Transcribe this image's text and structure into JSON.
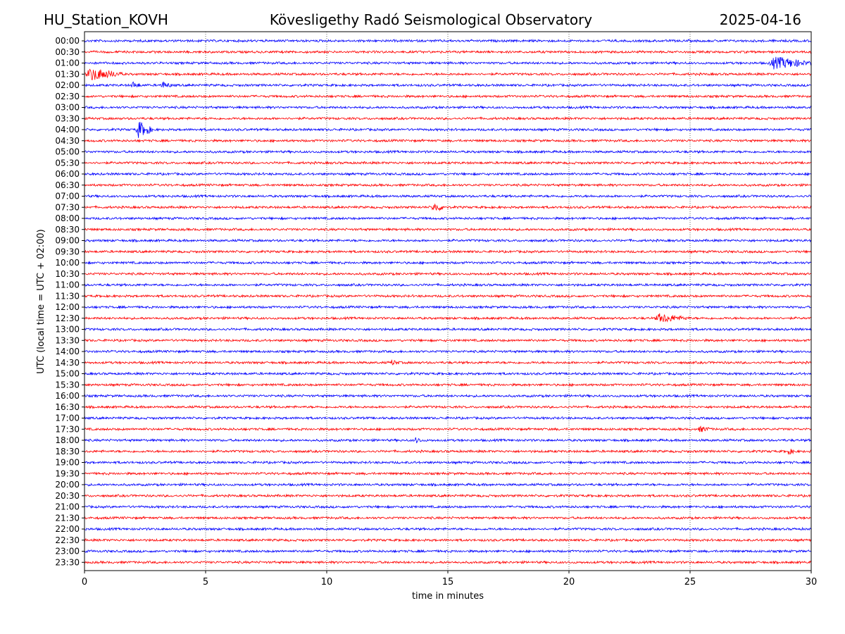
{
  "header": {
    "station": "HU_Station_KOVH",
    "observatory": "Kövesligethy Radó Seismological Observatory",
    "date": "2025-04-16"
  },
  "colors": {
    "even_rows": "#0000ff",
    "odd_rows": "#ff0000",
    "grid": "#000000"
  },
  "chart_data": {
    "type": "line",
    "title": "Kövesligethy Radó Seismological Observatory",
    "xlabel": "time in minutes",
    "ylabel": "UTC (local time = UTC + 02:00)",
    "xlim": [
      0,
      30
    ],
    "xticks": [
      0,
      5,
      10,
      15,
      20,
      25,
      30
    ],
    "grid": "vertical dotted at x ticks",
    "rows": [
      "00:00",
      "00:30",
      "01:00",
      "01:30",
      "02:00",
      "02:30",
      "03:00",
      "03:30",
      "04:00",
      "04:30",
      "05:00",
      "05:30",
      "06:00",
      "06:30",
      "07:00",
      "07:30",
      "08:00",
      "08:30",
      "09:00",
      "09:30",
      "10:00",
      "10:30",
      "11:00",
      "11:30",
      "12:00",
      "12:30",
      "13:00",
      "13:30",
      "14:00",
      "14:30",
      "15:00",
      "15:30",
      "16:00",
      "16:30",
      "17:00",
      "17:30",
      "18:00",
      "18:30",
      "19:00",
      "19:30",
      "20:00",
      "20:30",
      "21:00",
      "21:30",
      "22:00",
      "22:30",
      "23:00",
      "23:30"
    ],
    "noise_amplitude": 0.12,
    "events": [
      {
        "row": "01:00",
        "start": 28.2,
        "end": 30.0,
        "amplitude": 0.6
      },
      {
        "row": "01:30",
        "start": 0.0,
        "end": 1.6,
        "amplitude": 0.6
      },
      {
        "row": "02:00",
        "start": 1.9,
        "end": 2.4,
        "amplitude": 0.35
      },
      {
        "row": "02:00",
        "start": 3.1,
        "end": 3.7,
        "amplitude": 0.35
      },
      {
        "row": "04:00",
        "start": 2.1,
        "end": 2.8,
        "amplitude": 0.8
      },
      {
        "row": "07:30",
        "start": 14.3,
        "end": 15.0,
        "amplitude": 0.45
      },
      {
        "row": "12:30",
        "start": 23.5,
        "end": 25.0,
        "amplitude": 0.45
      },
      {
        "row": "14:30",
        "start": 12.6,
        "end": 13.1,
        "amplitude": 0.3
      },
      {
        "row": "17:30",
        "start": 25.3,
        "end": 26.0,
        "amplitude": 0.3
      },
      {
        "row": "18:00",
        "start": 13.6,
        "end": 14.0,
        "amplitude": 0.3
      },
      {
        "row": "18:30",
        "start": 29.0,
        "end": 29.4,
        "amplitude": 0.3
      }
    ]
  }
}
